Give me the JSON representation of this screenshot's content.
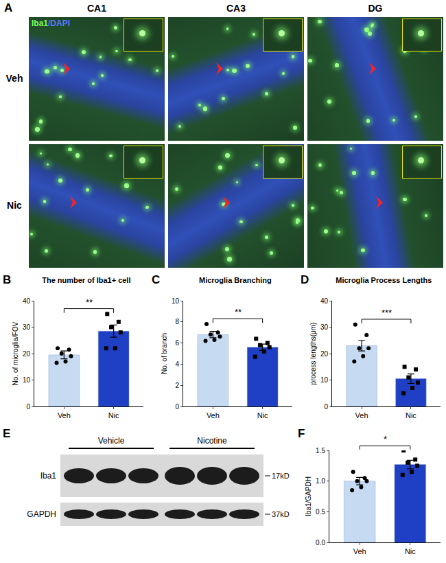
{
  "panel_A": {
    "letter": "A",
    "columns": [
      "CA1",
      "CA3",
      "DG"
    ],
    "rows": [
      "Veh",
      "Nic"
    ],
    "stain": [
      {
        "text": "Iba1",
        "color": "#7dff5a"
      },
      {
        "text": "/DAPI",
        "color": "#5a78ff"
      }
    ]
  },
  "chart_data": [
    {
      "letter": "B",
      "type": "bar",
      "title": "The number of Iba1+ cell",
      "y_label": "No. of microglia/FOV",
      "categories": [
        "Veh",
        "Nic"
      ],
      "values": [
        19.5,
        28.5
      ],
      "errors": [
        1.5,
        2.3
      ],
      "points": [
        [
          22,
          21.5,
          20,
          19,
          17,
          16.5
        ],
        [
          35,
          32,
          30,
          28,
          22,
          22
        ]
      ],
      "colors": [
        "#c6daf2",
        "#1f3fc4"
      ],
      "marker": [
        "circle",
        "square"
      ],
      "significance": "**",
      "ylim": [
        0,
        40
      ],
      "yticks": [
        0,
        10,
        20,
        30,
        40
      ]
    },
    {
      "letter": "C",
      "type": "bar",
      "title": "Microglia Branching",
      "y_label": "No. of branch",
      "categories": [
        "Veh",
        "Nic"
      ],
      "values": [
        6.8,
        5.6
      ],
      "errors": [
        0.3,
        0.3
      ],
      "points": [
        [
          7.8,
          7.0,
          6.8,
          6.6,
          6.3,
          6.2
        ],
        [
          6.4,
          6.0,
          5.8,
          5.6,
          5.2,
          4.7
        ]
      ],
      "colors": [
        "#c6daf2",
        "#1f3fc4"
      ],
      "marker": [
        "circle",
        "square"
      ],
      "significance": "**",
      "ylim": [
        0,
        10
      ],
      "yticks": [
        0,
        2,
        4,
        6,
        8,
        10
      ]
    },
    {
      "letter": "D",
      "type": "bar",
      "title": "Microglia Process Lengths",
      "y_label": "process lengths(μm)",
      "categories": [
        "Veh",
        "Nic"
      ],
      "values": [
        23,
        10.5
      ],
      "errors": [
        2,
        1.8
      ],
      "points": [
        [
          31,
          27,
          22,
          22,
          19,
          17
        ],
        [
          15,
          14,
          11,
          9,
          7,
          5
        ]
      ],
      "colors": [
        "#c6daf2",
        "#1f3fc4"
      ],
      "marker": [
        "circle",
        "square"
      ],
      "significance": "***",
      "ylim": [
        0,
        40
      ],
      "yticks": [
        0,
        10,
        20,
        30,
        40
      ]
    },
    {
      "letter": "F",
      "type": "bar",
      "y_label": "Iba1/GAPDH",
      "categories": [
        "Veh",
        "Nic"
      ],
      "values": [
        1.0,
        1.27
      ],
      "errors": [
        0.06,
        0.07
      ],
      "points": [
        [
          1.15,
          1.05,
          1.0,
          1.0,
          0.9,
          0.85
        ],
        [
          1.5,
          1.35,
          1.3,
          1.25,
          1.15,
          1.1
        ]
      ],
      "colors": [
        "#c6daf2",
        "#1f3fc4"
      ],
      "marker": [
        "circle",
        "square"
      ],
      "significance": "*",
      "ylim": [
        0,
        1.5
      ],
      "yticks": [
        {
          "value": 0,
          "label": "0.0"
        },
        {
          "value": 0.5,
          "label": "0.5"
        },
        {
          "value": 1,
          "label": "1.0"
        },
        {
          "value": 1.5,
          "label": "1.5"
        }
      ]
    }
  ],
  "panel_E": {
    "letter": "E",
    "groups": [
      "Vehicle",
      "Nicotine"
    ],
    "bands": [
      {
        "name": "Iba1",
        "size": "17kD"
      },
      {
        "name": "GAPDH",
        "size": "37kD"
      }
    ]
  }
}
